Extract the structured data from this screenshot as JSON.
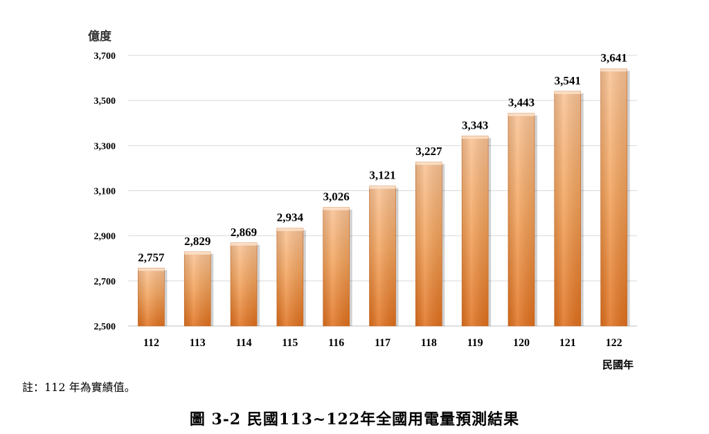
{
  "chart_data": {
    "type": "bar",
    "ylabel": "億度",
    "xlabel": "民國年",
    "categories": [
      "112",
      "113",
      "114",
      "115",
      "116",
      "117",
      "118",
      "119",
      "120",
      "121",
      "122"
    ],
    "series": [
      {
        "values": [
          2757,
          2829,
          2869,
          2934,
          3026,
          3121,
          3227,
          3343,
          3443,
          3541,
          3641
        ]
      }
    ],
    "value_labels": [
      "2,757",
      "2,829",
      "2,869",
      "2,934",
      "3,026",
      "3,121",
      "3,227",
      "3,343",
      "3,443",
      "3,541",
      "3,641"
    ],
    "ylim": [
      2500,
      3700
    ],
    "yticks": [
      2500,
      2700,
      2900,
      3100,
      3300,
      3500,
      3700
    ],
    "ytick_labels": [
      "2,500",
      "2,700",
      "2,900",
      "3,100",
      "3,300",
      "3,500",
      "3,700"
    ],
    "grid": true,
    "legend": "none",
    "colors": {
      "bar_top": "#f9c294",
      "bar_mid": "#f39a4c",
      "bar_bottom": "#e0701d",
      "actual_label": "#d9121e",
      "gridline": "#d9d9d9"
    },
    "highlight_index": 0
  },
  "note": "註：112 年為實績值。",
  "caption": "圖 3-2  民國113~122年全國用電量預測結果"
}
